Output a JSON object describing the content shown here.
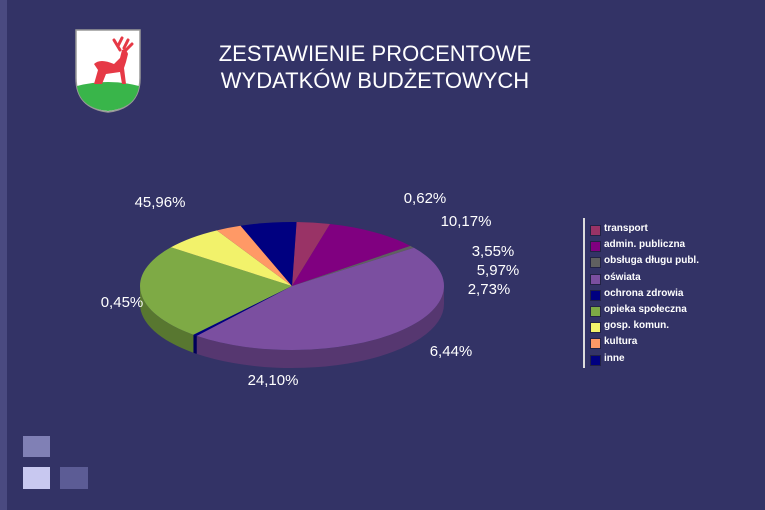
{
  "title_line1": "ZESTAWIENIE PROCENTOWE",
  "title_line2": "WYDATKÓW BUDŻETOWYCH",
  "colors": {
    "background": "#333366",
    "title": "#ffffff"
  },
  "chart_data": {
    "type": "pie",
    "categories": [
      "transport",
      "admin. publiczna",
      "obsługa długu publ.",
      "oświata",
      "ochrona zdrowia",
      "opieka społeczna",
      "gosp. komun.",
      "kultura",
      "inne"
    ],
    "values": [
      3.55,
      10.17,
      0.62,
      45.96,
      0.45,
      24.1,
      6.44,
      2.73,
      5.97
    ],
    "data_labels": [
      "3,55%",
      "10,17%",
      "0,62%",
      "45,96%",
      "0,45%",
      "24,10%",
      "6,44%",
      "2,73%",
      "5,97%"
    ],
    "colors": [
      "#993366",
      "#800080",
      "#606060",
      "#7b4fa0",
      "#000080",
      "#7eaa45",
      "#f2f26b",
      "#ff9966",
      "#000080"
    ],
    "legend_position": "right",
    "style": "3d-tilted"
  }
}
